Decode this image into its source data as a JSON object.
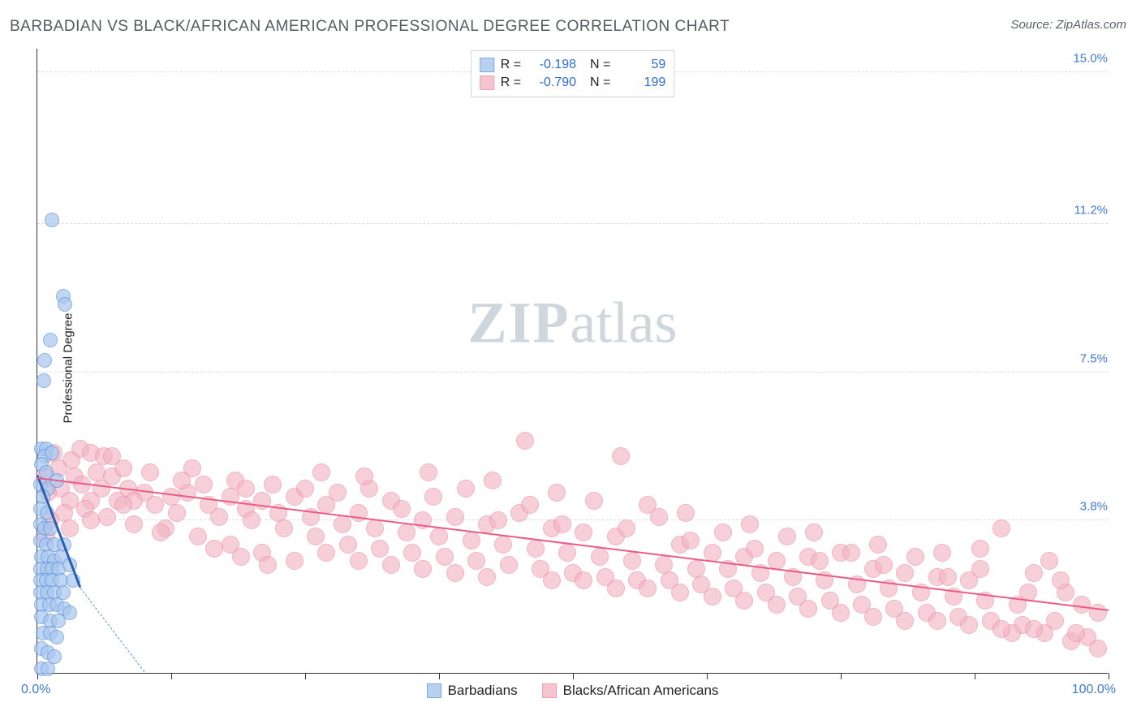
{
  "title": "BARBADIAN VS BLACK/AFRICAN AMERICAN PROFESSIONAL DEGREE CORRELATION CHART",
  "source": "Source: ZipAtlas.com",
  "watermark_bold": "ZIP",
  "watermark_light": "atlas",
  "ylabel": "Professional Degree",
  "chart": {
    "type": "scatter",
    "xlim": [
      0,
      100
    ],
    "ylim": [
      0,
      15.6
    ],
    "yticks": [
      3.8,
      7.5,
      11.2,
      15.0
    ],
    "ytick_labels": [
      "3.8%",
      "7.5%",
      "11.2%",
      "15.0%"
    ],
    "xticks": [
      0,
      12.5,
      25,
      37.5,
      50,
      62.5,
      75,
      87.5,
      100
    ],
    "x_min_label": "0.0%",
    "x_max_label": "100.0%",
    "background_color": "#ffffff",
    "grid_color": "#d9dde3",
    "axis_color": "#333333",
    "series": [
      {
        "name": "Barbadians",
        "fill": "#a8c6ee",
        "fill_opacity": 0.45,
        "stroke": "#5d94dc",
        "marker_radius": 9,
        "R": "-0.198",
        "N": "59",
        "trend": {
          "x1": 0,
          "y1": 4.9,
          "x2": 4.0,
          "y2": 2.1,
          "color": "#2b5fb0",
          "width": 3
        },
        "trend_extend": {
          "x1": 4.0,
          "y1": 2.1,
          "x2": 10.0,
          "y2": 0,
          "color": "#5d94dc"
        },
        "points": [
          [
            1.4,
            11.3
          ],
          [
            2.4,
            9.4
          ],
          [
            2.6,
            9.2
          ],
          [
            1.2,
            8.3
          ],
          [
            0.7,
            7.8
          ],
          [
            0.6,
            7.3
          ],
          [
            0.4,
            5.6
          ],
          [
            0.8,
            5.6
          ],
          [
            0.7,
            5.4
          ],
          [
            1.4,
            5.5
          ],
          [
            0.4,
            5.2
          ],
          [
            0.8,
            5.0
          ],
          [
            0.3,
            4.7
          ],
          [
            1.0,
            4.6
          ],
          [
            0.5,
            4.4
          ],
          [
            0.3,
            4.1
          ],
          [
            0.9,
            4.0
          ],
          [
            1.8,
            4.8
          ],
          [
            0.3,
            3.7
          ],
          [
            0.7,
            3.6
          ],
          [
            1.2,
            3.6
          ],
          [
            0.3,
            3.3
          ],
          [
            0.8,
            3.2
          ],
          [
            1.6,
            3.2
          ],
          [
            2.5,
            3.2
          ],
          [
            0.4,
            2.9
          ],
          [
            1.0,
            2.9
          ],
          [
            1.6,
            2.8
          ],
          [
            2.3,
            2.9
          ],
          [
            0.3,
            2.6
          ],
          [
            0.9,
            2.6
          ],
          [
            1.4,
            2.6
          ],
          [
            2.0,
            2.6
          ],
          [
            3.0,
            2.7
          ],
          [
            0.3,
            2.3
          ],
          [
            0.8,
            2.3
          ],
          [
            1.4,
            2.3
          ],
          [
            2.2,
            2.3
          ],
          [
            3.3,
            2.3
          ],
          [
            0.3,
            2.0
          ],
          [
            0.9,
            2.0
          ],
          [
            1.6,
            2.0
          ],
          [
            2.4,
            2.0
          ],
          [
            0.4,
            1.7
          ],
          [
            1.1,
            1.7
          ],
          [
            1.8,
            1.7
          ],
          [
            2.5,
            1.6
          ],
          [
            3.0,
            1.5
          ],
          [
            0.4,
            1.4
          ],
          [
            1.2,
            1.3
          ],
          [
            2.0,
            1.3
          ],
          [
            0.5,
            1.0
          ],
          [
            1.2,
            1.0
          ],
          [
            1.8,
            0.9
          ],
          [
            0.4,
            0.6
          ],
          [
            1.0,
            0.5
          ],
          [
            1.6,
            0.4
          ],
          [
            0.4,
            0.1
          ],
          [
            1.0,
            0.1
          ]
        ]
      },
      {
        "name": "Blacks/African Americans",
        "fill": "#f2b6c4",
        "fill_opacity": 0.4,
        "stroke": "#ea8ba3",
        "marker_radius": 11,
        "R": "-0.790",
        "N": "199",
        "trend": {
          "x1": 0,
          "y1": 4.85,
          "x2": 100,
          "y2": 1.55,
          "color": "#ea5c87",
          "width": 2
        },
        "points": [
          [
            1.5,
            5.5
          ],
          [
            3.2,
            5.3
          ],
          [
            4.0,
            5.6
          ],
          [
            5.0,
            5.5
          ],
          [
            6.2,
            5.4
          ],
          [
            2.0,
            5.1
          ],
          [
            3.5,
            4.9
          ],
          [
            5.5,
            5.0
          ],
          [
            7.0,
            4.9
          ],
          [
            8.0,
            5.1
          ],
          [
            2.2,
            4.6
          ],
          [
            4.2,
            4.7
          ],
          [
            6.0,
            4.6
          ],
          [
            8.5,
            4.6
          ],
          [
            10.0,
            4.5
          ],
          [
            3.0,
            4.3
          ],
          [
            5.0,
            4.3
          ],
          [
            7.5,
            4.3
          ],
          [
            9.0,
            4.3
          ],
          [
            11.0,
            4.2
          ],
          [
            12.5,
            4.4
          ],
          [
            14.0,
            4.5
          ],
          [
            15.5,
            4.7
          ],
          [
            13.0,
            4.0
          ],
          [
            16.0,
            4.2
          ],
          [
            18.0,
            4.4
          ],
          [
            17.0,
            3.9
          ],
          [
            19.5,
            4.1
          ],
          [
            21.0,
            4.3
          ],
          [
            20.0,
            3.8
          ],
          [
            22.5,
            4.0
          ],
          [
            24.0,
            4.4
          ],
          [
            23.0,
            3.6
          ],
          [
            25.5,
            3.9
          ],
          [
            27.0,
            4.2
          ],
          [
            26.0,
            3.4
          ],
          [
            28.5,
            3.7
          ],
          [
            30.0,
            4.0
          ],
          [
            29.0,
            3.2
          ],
          [
            31.5,
            3.6
          ],
          [
            33.0,
            4.3
          ],
          [
            32.0,
            3.1
          ],
          [
            34.5,
            3.5
          ],
          [
            36.0,
            3.8
          ],
          [
            35.0,
            3.0
          ],
          [
            37.5,
            3.4
          ],
          [
            39.0,
            3.9
          ],
          [
            38.0,
            2.9
          ],
          [
            40.5,
            3.3
          ],
          [
            42.0,
            3.7
          ],
          [
            41.0,
            2.8
          ],
          [
            43.5,
            3.2
          ],
          [
            45.0,
            4.0
          ],
          [
            44.0,
            2.7
          ],
          [
            46.5,
            3.1
          ],
          [
            48.0,
            3.6
          ],
          [
            47.0,
            2.6
          ],
          [
            49.5,
            3.0
          ],
          [
            51.0,
            3.5
          ],
          [
            50.0,
            2.5
          ],
          [
            52.5,
            2.9
          ],
          [
            54.0,
            3.4
          ],
          [
            53.0,
            2.4
          ],
          [
            55.5,
            2.8
          ],
          [
            57.0,
            4.2
          ],
          [
            56.0,
            2.3
          ],
          [
            58.5,
            2.7
          ],
          [
            60.0,
            3.2
          ],
          [
            59.0,
            2.3
          ],
          [
            61.5,
            2.6
          ],
          [
            63.0,
            3.0
          ],
          [
            62.0,
            2.2
          ],
          [
            64.5,
            2.6
          ],
          [
            66.0,
            2.9
          ],
          [
            65.0,
            2.1
          ],
          [
            67.5,
            2.5
          ],
          [
            69.0,
            2.8
          ],
          [
            68.0,
            2.0
          ],
          [
            70.5,
            2.4
          ],
          [
            72.0,
            2.9
          ],
          [
            71.0,
            1.9
          ],
          [
            73.5,
            2.3
          ],
          [
            75.0,
            3.0
          ],
          [
            74.0,
            1.8
          ],
          [
            76.5,
            2.2
          ],
          [
            78.0,
            2.6
          ],
          [
            77.0,
            1.7
          ],
          [
            79.5,
            2.1
          ],
          [
            81.0,
            2.5
          ],
          [
            80.0,
            1.6
          ],
          [
            82.5,
            2.0
          ],
          [
            84.0,
            2.4
          ],
          [
            83.0,
            1.5
          ],
          [
            85.5,
            1.9
          ],
          [
            87.0,
            2.3
          ],
          [
            86.0,
            1.4
          ],
          [
            88.5,
            1.8
          ],
          [
            90.0,
            3.6
          ],
          [
            89.0,
            1.3
          ],
          [
            91.5,
            1.7
          ],
          [
            93.0,
            2.5
          ],
          [
            92.0,
            1.2
          ],
          [
            94.5,
            2.8
          ],
          [
            96.0,
            2.0
          ],
          [
            95.0,
            1.3
          ],
          [
            97.5,
            1.7
          ],
          [
            99.0,
            1.5
          ],
          [
            98.0,
            0.9
          ],
          [
            99.0,
            0.6
          ],
          [
            96.5,
            0.8
          ],
          [
            94.0,
            1.0
          ],
          [
            91.0,
            1.0
          ],
          [
            45.5,
            5.8
          ],
          [
            54.5,
            5.4
          ],
          [
            7.0,
            5.4
          ],
          [
            10.5,
            5.0
          ],
          [
            14.5,
            5.1
          ],
          [
            18.5,
            4.8
          ],
          [
            22.0,
            4.7
          ],
          [
            25.0,
            4.6
          ],
          [
            28.0,
            4.5
          ],
          [
            31.0,
            4.6
          ],
          [
            34.0,
            4.1
          ],
          [
            37.0,
            4.4
          ],
          [
            40.0,
            4.6
          ],
          [
            43.0,
            3.8
          ],
          [
            46.0,
            4.2
          ],
          [
            49.0,
            3.7
          ],
          [
            52.0,
            4.3
          ],
          [
            55.0,
            3.6
          ],
          [
            58.0,
            3.9
          ],
          [
            61.0,
            3.3
          ],
          [
            64.0,
            3.5
          ],
          [
            67.0,
            3.1
          ],
          [
            70.0,
            3.4
          ],
          [
            73.0,
            2.8
          ],
          [
            76.0,
            3.0
          ],
          [
            79.0,
            2.7
          ],
          [
            82.0,
            2.9
          ],
          [
            85.0,
            2.4
          ],
          [
            88.0,
            2.6
          ],
          [
            12.0,
            3.6
          ],
          [
            15.0,
            3.4
          ],
          [
            18.0,
            3.2
          ],
          [
            21.0,
            3.0
          ],
          [
            24.0,
            2.8
          ],
          [
            27.0,
            3.0
          ],
          [
            30.0,
            2.8
          ],
          [
            33.0,
            2.7
          ],
          [
            36.0,
            2.6
          ],
          [
            39.0,
            2.5
          ],
          [
            42.0,
            2.4
          ],
          [
            48.0,
            2.3
          ],
          [
            51.0,
            2.3
          ],
          [
            54.0,
            2.1
          ],
          [
            57.0,
            2.1
          ],
          [
            60.0,
            2.0
          ],
          [
            63.0,
            1.9
          ],
          [
            66.0,
            1.8
          ],
          [
            69.0,
            1.7
          ],
          [
            72.0,
            1.6
          ],
          [
            75.0,
            1.5
          ],
          [
            78.0,
            1.4
          ],
          [
            81.0,
            1.3
          ],
          [
            84.0,
            1.3
          ],
          [
            87.0,
            1.2
          ],
          [
            90.0,
            1.1
          ],
          [
            93.0,
            1.1
          ],
          [
            6.5,
            3.9
          ],
          [
            9.0,
            3.7
          ],
          [
            11.5,
            3.5
          ],
          [
            4.5,
            4.1
          ],
          [
            2.5,
            4.0
          ],
          [
            1.0,
            4.5
          ],
          [
            0.7,
            4.9
          ],
          [
            16.5,
            3.1
          ],
          [
            19.0,
            2.9
          ],
          [
            21.5,
            2.7
          ],
          [
            88.0,
            3.1
          ],
          [
            92.5,
            2.0
          ],
          [
            95.5,
            2.3
          ],
          [
            97.0,
            1.0
          ],
          [
            30.5,
            4.9
          ],
          [
            36.5,
            5.0
          ],
          [
            42.5,
            4.8
          ],
          [
            48.5,
            4.5
          ],
          [
            60.5,
            4.0
          ],
          [
            66.5,
            3.7
          ],
          [
            72.5,
            3.5
          ],
          [
            78.5,
            3.2
          ],
          [
            84.5,
            3.0
          ],
          [
            13.5,
            4.8
          ],
          [
            19.5,
            4.6
          ],
          [
            8.0,
            4.2
          ],
          [
            5.0,
            3.8
          ],
          [
            3.0,
            3.6
          ],
          [
            1.2,
            3.8
          ],
          [
            0.8,
            3.4
          ],
          [
            26.5,
            5.0
          ]
        ]
      }
    ]
  },
  "legend_bottom": [
    "Barbadians",
    "Blacks/African Americans"
  ]
}
